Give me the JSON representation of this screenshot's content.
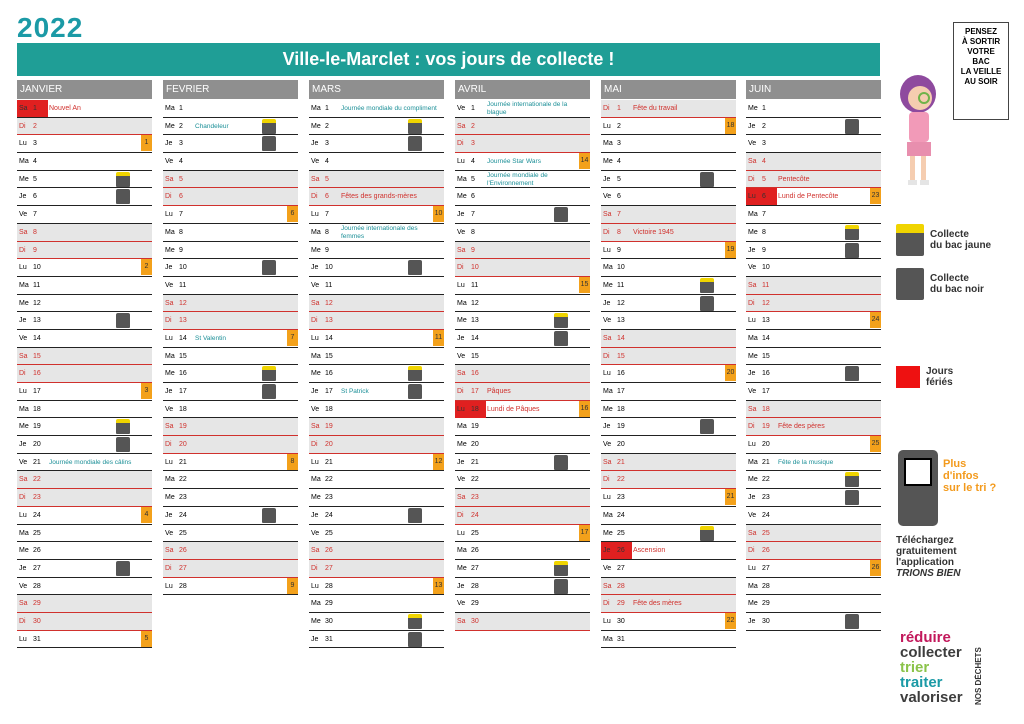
{
  "year": "2022",
  "title": "Ville-le-Marclet : vos jours de collecte !",
  "months": [
    {
      "name": "JANVIER",
      "days": [
        {
          "d": "Sa",
          "n": "1",
          "type": "ferie",
          "event": "Nouvel An"
        },
        {
          "d": "Di",
          "n": "2",
          "type": "we"
        },
        {
          "d": "Lu",
          "n": "3",
          "week": "1"
        },
        {
          "d": "Ma",
          "n": "4"
        },
        {
          "d": "Me",
          "n": "5",
          "bin": "yellow"
        },
        {
          "d": "Je",
          "n": "6",
          "bin": "black"
        },
        {
          "d": "Ve",
          "n": "7"
        },
        {
          "d": "Sa",
          "n": "8",
          "type": "we"
        },
        {
          "d": "Di",
          "n": "9",
          "type": "we"
        },
        {
          "d": "Lu",
          "n": "10",
          "week": "2"
        },
        {
          "d": "Ma",
          "n": "11"
        },
        {
          "d": "Me",
          "n": "12"
        },
        {
          "d": "Je",
          "n": "13",
          "bin": "black"
        },
        {
          "d": "Ve",
          "n": "14"
        },
        {
          "d": "Sa",
          "n": "15",
          "type": "we"
        },
        {
          "d": "Di",
          "n": "16",
          "type": "we"
        },
        {
          "d": "Lu",
          "n": "17",
          "week": "3"
        },
        {
          "d": "Ma",
          "n": "18"
        },
        {
          "d": "Me",
          "n": "19",
          "bin": "yellow"
        },
        {
          "d": "Je",
          "n": "20",
          "bin": "black"
        },
        {
          "d": "Ve",
          "n": "21",
          "note": "Journée mondiale des câlins"
        },
        {
          "d": "Sa",
          "n": "22",
          "type": "we"
        },
        {
          "d": "Di",
          "n": "23",
          "type": "we"
        },
        {
          "d": "Lu",
          "n": "24",
          "week": "4"
        },
        {
          "d": "Ma",
          "n": "25"
        },
        {
          "d": "Me",
          "n": "26"
        },
        {
          "d": "Je",
          "n": "27",
          "bin": "black"
        },
        {
          "d": "Ve",
          "n": "28"
        },
        {
          "d": "Sa",
          "n": "29",
          "type": "we"
        },
        {
          "d": "Di",
          "n": "30",
          "type": "we"
        },
        {
          "d": "Lu",
          "n": "31",
          "week": "5"
        }
      ]
    },
    {
      "name": "FEVRIER",
      "days": [
        {
          "d": "Ma",
          "n": "1"
        },
        {
          "d": "Me",
          "n": "2",
          "bin": "yellow",
          "note": "Chandeleur"
        },
        {
          "d": "Je",
          "n": "3",
          "bin": "black"
        },
        {
          "d": "Ve",
          "n": "4"
        },
        {
          "d": "Sa",
          "n": "5",
          "type": "we"
        },
        {
          "d": "Di",
          "n": "6",
          "type": "we"
        },
        {
          "d": "Lu",
          "n": "7",
          "week": "6"
        },
        {
          "d": "Ma",
          "n": "8"
        },
        {
          "d": "Me",
          "n": "9"
        },
        {
          "d": "Je",
          "n": "10",
          "bin": "black"
        },
        {
          "d": "Ve",
          "n": "11"
        },
        {
          "d": "Sa",
          "n": "12",
          "type": "we"
        },
        {
          "d": "Di",
          "n": "13",
          "type": "we"
        },
        {
          "d": "Lu",
          "n": "14",
          "week": "7",
          "note": "St Valentin"
        },
        {
          "d": "Ma",
          "n": "15"
        },
        {
          "d": "Me",
          "n": "16",
          "bin": "yellow"
        },
        {
          "d": "Je",
          "n": "17",
          "bin": "black"
        },
        {
          "d": "Ve",
          "n": "18"
        },
        {
          "d": "Sa",
          "n": "19",
          "type": "we"
        },
        {
          "d": "Di",
          "n": "20",
          "type": "we"
        },
        {
          "d": "Lu",
          "n": "21",
          "week": "8"
        },
        {
          "d": "Ma",
          "n": "22"
        },
        {
          "d": "Me",
          "n": "23"
        },
        {
          "d": "Je",
          "n": "24",
          "bin": "black"
        },
        {
          "d": "Ve",
          "n": "25"
        },
        {
          "d": "Sa",
          "n": "26",
          "type": "we"
        },
        {
          "d": "Di",
          "n": "27",
          "type": "we"
        },
        {
          "d": "Lu",
          "n": "28",
          "week": "9"
        }
      ]
    },
    {
      "name": "MARS",
      "days": [
        {
          "d": "Ma",
          "n": "1",
          "note": "Journée mondiale du compliment"
        },
        {
          "d": "Me",
          "n": "2",
          "bin": "yellow"
        },
        {
          "d": "Je",
          "n": "3",
          "bin": "black"
        },
        {
          "d": "Ve",
          "n": "4"
        },
        {
          "d": "Sa",
          "n": "5",
          "type": "we"
        },
        {
          "d": "Di",
          "n": "6",
          "type": "we",
          "event": "Fêtes des grands-mères"
        },
        {
          "d": "Lu",
          "n": "7",
          "week": "10"
        },
        {
          "d": "Ma",
          "n": "8",
          "note": "Journée internationale des femmes",
          "two": true
        },
        {
          "d": "Me",
          "n": "9"
        },
        {
          "d": "Je",
          "n": "10",
          "bin": "black"
        },
        {
          "d": "Ve",
          "n": "11"
        },
        {
          "d": "Sa",
          "n": "12",
          "type": "we"
        },
        {
          "d": "Di",
          "n": "13",
          "type": "we"
        },
        {
          "d": "Lu",
          "n": "14",
          "week": "11"
        },
        {
          "d": "Ma",
          "n": "15"
        },
        {
          "d": "Me",
          "n": "16",
          "bin": "yellow"
        },
        {
          "d": "Je",
          "n": "17",
          "bin": "black",
          "note": "St Patrick"
        },
        {
          "d": "Ve",
          "n": "18"
        },
        {
          "d": "Sa",
          "n": "19",
          "type": "we"
        },
        {
          "d": "Di",
          "n": "20",
          "type": "we"
        },
        {
          "d": "Lu",
          "n": "21",
          "week": "12"
        },
        {
          "d": "Ma",
          "n": "22"
        },
        {
          "d": "Me",
          "n": "23"
        },
        {
          "d": "Je",
          "n": "24",
          "bin": "black"
        },
        {
          "d": "Ve",
          "n": "25"
        },
        {
          "d": "Sa",
          "n": "26",
          "type": "we"
        },
        {
          "d": "Di",
          "n": "27",
          "type": "we"
        },
        {
          "d": "Lu",
          "n": "28",
          "week": "13"
        },
        {
          "d": "Ma",
          "n": "29"
        },
        {
          "d": "Me",
          "n": "30",
          "bin": "yellow"
        },
        {
          "d": "Je",
          "n": "31",
          "bin": "black"
        }
      ]
    },
    {
      "name": "AVRIL",
      "days": [
        {
          "d": "Ve",
          "n": "1",
          "note": "Journée internationale de la blague",
          "two": true
        },
        {
          "d": "Sa",
          "n": "2",
          "type": "we"
        },
        {
          "d": "Di",
          "n": "3",
          "type": "we"
        },
        {
          "d": "Lu",
          "n": "4",
          "week": "14",
          "note": "Journée Star Wars"
        },
        {
          "d": "Ma",
          "n": "5",
          "note": "Journée mondiale de l'Environnement",
          "two": true
        },
        {
          "d": "Me",
          "n": "6"
        },
        {
          "d": "Je",
          "n": "7",
          "bin": "black"
        },
        {
          "d": "Ve",
          "n": "8"
        },
        {
          "d": "Sa",
          "n": "9",
          "type": "we"
        },
        {
          "d": "Di",
          "n": "10",
          "type": "we"
        },
        {
          "d": "Lu",
          "n": "11",
          "week": "15"
        },
        {
          "d": "Ma",
          "n": "12"
        },
        {
          "d": "Me",
          "n": "13",
          "bin": "yellow"
        },
        {
          "d": "Je",
          "n": "14",
          "bin": "black"
        },
        {
          "d": "Ve",
          "n": "15"
        },
        {
          "d": "Sa",
          "n": "16",
          "type": "we"
        },
        {
          "d": "Di",
          "n": "17",
          "type": "we",
          "event": "Pâques"
        },
        {
          "d": "Lu",
          "n": "18",
          "type": "ferie",
          "week": "16",
          "event": "Lundi de Pâques"
        },
        {
          "d": "Ma",
          "n": "19"
        },
        {
          "d": "Me",
          "n": "20"
        },
        {
          "d": "Je",
          "n": "21",
          "bin": "black"
        },
        {
          "d": "Ve",
          "n": "22"
        },
        {
          "d": "Sa",
          "n": "23",
          "type": "we"
        },
        {
          "d": "Di",
          "n": "24",
          "type": "we"
        },
        {
          "d": "Lu",
          "n": "25",
          "week": "17"
        },
        {
          "d": "Ma",
          "n": "26"
        },
        {
          "d": "Me",
          "n": "27",
          "bin": "yellow"
        },
        {
          "d": "Je",
          "n": "28",
          "bin": "black"
        },
        {
          "d": "Ve",
          "n": "29"
        },
        {
          "d": "Sa",
          "n": "30",
          "type": "we"
        }
      ]
    },
    {
      "name": "MAI",
      "days": [
        {
          "d": "Di",
          "n": "1",
          "type": "we",
          "event": "Fête du travail"
        },
        {
          "d": "Lu",
          "n": "2",
          "week": "18"
        },
        {
          "d": "Ma",
          "n": "3"
        },
        {
          "d": "Me",
          "n": "4"
        },
        {
          "d": "Je",
          "n": "5",
          "bin": "black"
        },
        {
          "d": "Ve",
          "n": "6"
        },
        {
          "d": "Sa",
          "n": "7",
          "type": "we"
        },
        {
          "d": "Di",
          "n": "8",
          "type": "we",
          "event": "Victoire 1945"
        },
        {
          "d": "Lu",
          "n": "9",
          "week": "19"
        },
        {
          "d": "Ma",
          "n": "10"
        },
        {
          "d": "Me",
          "n": "11",
          "bin": "yellow"
        },
        {
          "d": "Je",
          "n": "12",
          "bin": "black"
        },
        {
          "d": "Ve",
          "n": "13"
        },
        {
          "d": "Sa",
          "n": "14",
          "type": "we"
        },
        {
          "d": "Di",
          "n": "15",
          "type": "we"
        },
        {
          "d": "Lu",
          "n": "16",
          "week": "20"
        },
        {
          "d": "Ma",
          "n": "17"
        },
        {
          "d": "Me",
          "n": "18"
        },
        {
          "d": "Je",
          "n": "19",
          "bin": "black"
        },
        {
          "d": "Ve",
          "n": "20"
        },
        {
          "d": "Sa",
          "n": "21",
          "type": "we"
        },
        {
          "d": "Di",
          "n": "22",
          "type": "we"
        },
        {
          "d": "Lu",
          "n": "23",
          "week": "21"
        },
        {
          "d": "Ma",
          "n": "24"
        },
        {
          "d": "Me",
          "n": "25",
          "bin": "yellow"
        },
        {
          "d": "Je",
          "n": "26",
          "type": "ferie",
          "event": "Ascension"
        },
        {
          "d": "Ve",
          "n": "27"
        },
        {
          "d": "Sa",
          "n": "28",
          "type": "we"
        },
        {
          "d": "Di",
          "n": "29",
          "type": "we",
          "event": "Fête des mères"
        },
        {
          "d": "Lu",
          "n": "30",
          "week": "22"
        },
        {
          "d": "Ma",
          "n": "31"
        }
      ]
    },
    {
      "name": "JUIN",
      "days": [
        {
          "d": "Me",
          "n": "1"
        },
        {
          "d": "Je",
          "n": "2",
          "bin": "black"
        },
        {
          "d": "Ve",
          "n": "3"
        },
        {
          "d": "Sa",
          "n": "4",
          "type": "we"
        },
        {
          "d": "Di",
          "n": "5",
          "type": "we",
          "event": "Pentecôte"
        },
        {
          "d": "Lu",
          "n": "6",
          "type": "ferie",
          "week": "23",
          "event": "Lundi de Pentecôte"
        },
        {
          "d": "Ma",
          "n": "7"
        },
        {
          "d": "Me",
          "n": "8",
          "bin": "yellow"
        },
        {
          "d": "Je",
          "n": "9",
          "bin": "black"
        },
        {
          "d": "Ve",
          "n": "10"
        },
        {
          "d": "Sa",
          "n": "11",
          "type": "we"
        },
        {
          "d": "Di",
          "n": "12",
          "type": "we"
        },
        {
          "d": "Lu",
          "n": "13",
          "week": "24"
        },
        {
          "d": "Ma",
          "n": "14"
        },
        {
          "d": "Me",
          "n": "15"
        },
        {
          "d": "Je",
          "n": "16",
          "bin": "black"
        },
        {
          "d": "Ve",
          "n": "17"
        },
        {
          "d": "Sa",
          "n": "18",
          "type": "we"
        },
        {
          "d": "Di",
          "n": "19",
          "type": "we",
          "event": "Fête des pères"
        },
        {
          "d": "Lu",
          "n": "20",
          "week": "25"
        },
        {
          "d": "Ma",
          "n": "21",
          "note": "Fête de la musique"
        },
        {
          "d": "Me",
          "n": "22",
          "bin": "yellow"
        },
        {
          "d": "Je",
          "n": "23",
          "bin": "black"
        },
        {
          "d": "Ve",
          "n": "24"
        },
        {
          "d": "Sa",
          "n": "25",
          "type": "we"
        },
        {
          "d": "Di",
          "n": "26",
          "type": "we"
        },
        {
          "d": "Lu",
          "n": "27",
          "week": "26"
        },
        {
          "d": "Ma",
          "n": "28"
        },
        {
          "d": "Me",
          "n": "29"
        },
        {
          "d": "Je",
          "n": "30",
          "bin": "black"
        }
      ]
    }
  ],
  "board_lines": [
    "PENSEZ",
    "À SORTIR",
    "VOTRE",
    "BAC",
    "LA VEILLE",
    "AU SOIR"
  ],
  "legend": {
    "yellow_line1": "Collecte",
    "yellow_line2": "du bac jaune",
    "black_line1": "Collecte",
    "black_line2": "du bac noir",
    "ferie_line1": "Jours",
    "ferie_line2": "fériés"
  },
  "app_promo": {
    "bubble_line1": "Plus",
    "bubble_line2": "d'infos",
    "bubble_line3": "sur le tri ?",
    "download_line1": "Téléchargez",
    "download_line2": "gratuitement",
    "download_line3": "l'application",
    "app_name": "TRIONS BIEN"
  },
  "slogan": {
    "words": [
      "réduire",
      "collecter",
      "trier",
      "traiter",
      "valoriser"
    ],
    "word_colors": [
      "#c2185b",
      "#3d3d3d",
      "#8bc34a",
      "#1b9aa6",
      "#3d3d3d"
    ],
    "vertical": "NOS DÉCHETS"
  },
  "colors": {
    "teal": "#1f9e96",
    "orange": "#f3a11b",
    "holiday_red": "#e02020",
    "yellow_bin": "#f0d400"
  }
}
